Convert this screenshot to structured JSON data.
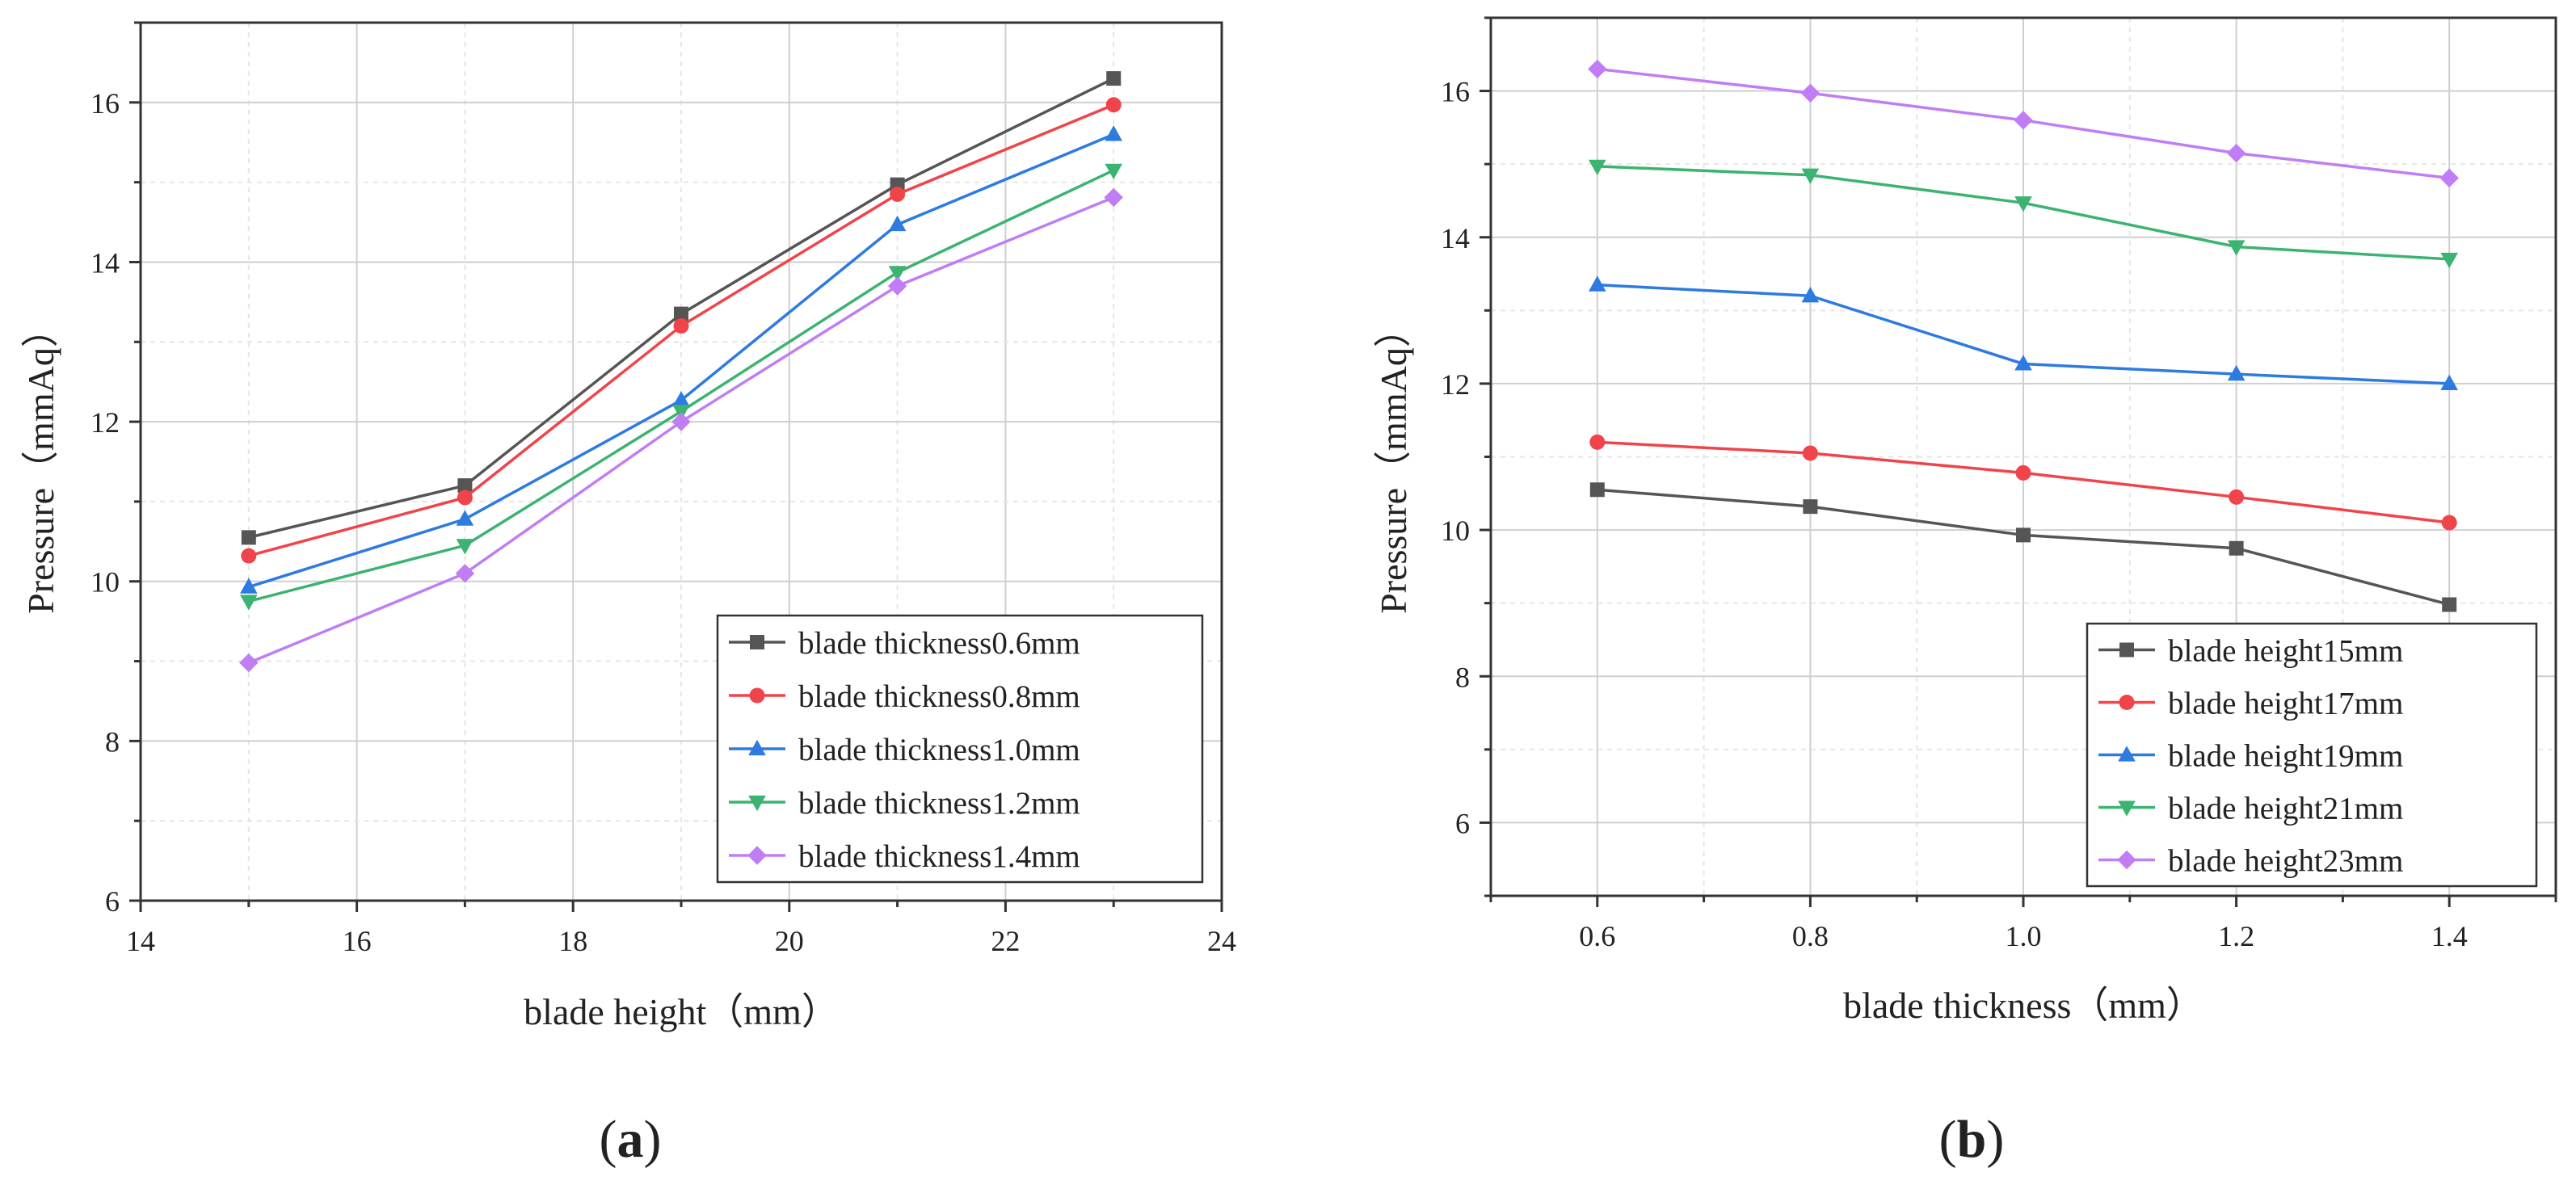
{
  "chart_data": [
    {
      "type": "line",
      "panel": "(a)",
      "panel_letter": "a",
      "title": "",
      "xlabel": "blade height（mm）",
      "ylabel": "Pressure（mmAq）",
      "xlim": [
        14,
        24
      ],
      "ylim": [
        6,
        17
      ],
      "xticks": [
        14,
        16,
        18,
        20,
        22,
        24
      ],
      "xtick_labels": [
        "14",
        "16",
        "18",
        "20",
        "22",
        "24"
      ],
      "yticks": [
        6,
        8,
        10,
        12,
        14,
        16
      ],
      "ytick_labels": [
        "6",
        "8",
        "10",
        "12",
        "14",
        "16"
      ],
      "x": [
        15,
        17,
        19,
        21,
        23
      ],
      "grid": true,
      "legend_position": "bottom-right",
      "series": [
        {
          "name": "blade thickness0.6mm",
          "color": "#555555",
          "marker": "square",
          "values": [
            10.55,
            11.2,
            13.35,
            14.97,
            16.3
          ]
        },
        {
          "name": "blade thickness0.8mm",
          "color": "#f0444a",
          "marker": "circle",
          "values": [
            10.32,
            11.05,
            13.2,
            14.85,
            15.97
          ]
        },
        {
          "name": "blade thickness1.0mm",
          "color": "#2d7ae0",
          "marker": "triangle-up",
          "values": [
            9.93,
            10.78,
            12.27,
            14.47,
            15.6
          ]
        },
        {
          "name": "blade thickness1.2mm",
          "color": "#3cb371",
          "marker": "triangle-down",
          "values": [
            9.75,
            10.45,
            12.13,
            13.87,
            15.15
          ]
        },
        {
          "name": "blade thickness1.4mm",
          "color": "#c07df5",
          "marker": "diamond",
          "values": [
            8.98,
            10.1,
            12.0,
            13.7,
            14.81
          ]
        }
      ]
    },
    {
      "type": "line",
      "panel": "(b)",
      "panel_letter": "b",
      "title": "",
      "xlabel": "blade thickness（mm）",
      "ylabel": "Pressure（mmAq）",
      "xlim": [
        0.5,
        1.5
      ],
      "ylim": [
        5,
        17
      ],
      "xticks": [
        0.6,
        0.8,
        1.0,
        1.2,
        1.4
      ],
      "xtick_labels": [
        "0.6",
        "0.8",
        "1.0",
        "1.2",
        "1.4"
      ],
      "yticks": [
        6,
        8,
        10,
        12,
        14,
        16
      ],
      "ytick_labels": [
        "6",
        "8",
        "10",
        "12",
        "14",
        "16"
      ],
      "x": [
        0.6,
        0.8,
        1.0,
        1.2,
        1.4
      ],
      "grid": true,
      "legend_position": "bottom-right",
      "series": [
        {
          "name": "blade height15mm",
          "color": "#555555",
          "marker": "square",
          "values": [
            10.55,
            10.32,
            9.93,
            9.75,
            8.98
          ]
        },
        {
          "name": "blade height17mm",
          "color": "#f0444a",
          "marker": "circle",
          "values": [
            11.2,
            11.05,
            10.78,
            10.45,
            10.1
          ]
        },
        {
          "name": "blade height19mm",
          "color": "#2d7ae0",
          "marker": "triangle-up",
          "values": [
            13.35,
            13.2,
            12.27,
            12.13,
            12.0
          ]
        },
        {
          "name": "blade height21mm",
          "color": "#3cb371",
          "marker": "triangle-down",
          "values": [
            14.97,
            14.85,
            14.47,
            13.87,
            13.7
          ]
        },
        {
          "name": "blade height23mm",
          "color": "#c07df5",
          "marker": "diamond",
          "values": [
            16.3,
            15.97,
            15.6,
            15.15,
            14.81
          ]
        }
      ]
    }
  ]
}
